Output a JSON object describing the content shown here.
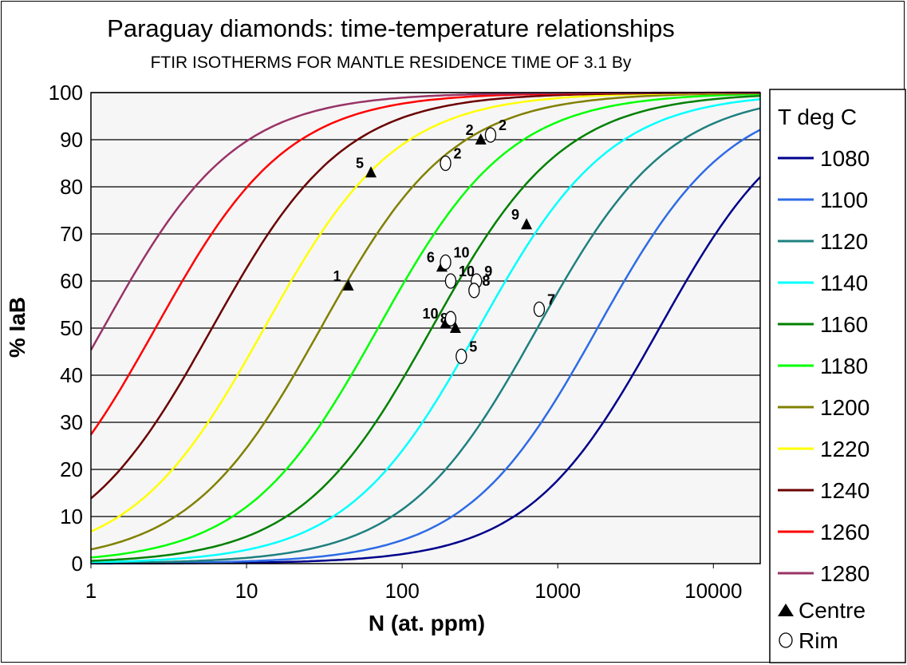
{
  "chart_data": {
    "type": "line",
    "title": "Paraguay diamonds: time-temperature relationships",
    "subtitle": "FTIR ISOTHERMS FOR MANTLE RESIDENCE TIME OF 3.1 By",
    "xlabel": "N (at. ppm)",
    "ylabel": "% IaB",
    "xscale": "log",
    "xlim": [
      1,
      20000
    ],
    "ylim": [
      0,
      100
    ],
    "xticks": [
      1,
      10,
      100,
      1000,
      10000
    ],
    "xtick_labels": [
      "1",
      "10",
      "100",
      "1000",
      "10000"
    ],
    "yticks": [
      0,
      10,
      20,
      30,
      40,
      50,
      60,
      70,
      80,
      90,
      100
    ],
    "grid": "horizontal",
    "legend_title": "T deg C",
    "legend_position": "right",
    "series": [
      {
        "name": "1080",
        "color": "#00008b",
        "x50": 4500
      },
      {
        "name": "1100",
        "color": "#2e6be6",
        "x50": 1800
      },
      {
        "name": "1120",
        "color": "#1f8080",
        "x50": 740
      },
      {
        "name": "1140",
        "color": "#00ffff",
        "x50": 310
      },
      {
        "name": "1160",
        "color": "#008000",
        "x50": 155
      },
      {
        "name": "1180",
        "color": "#00ff00",
        "x50": 70
      },
      {
        "name": "1200",
        "color": "#808000",
        "x50": 30
      },
      {
        "name": "1220",
        "color": "#ffff00",
        "x50": 13
      },
      {
        "name": "1240",
        "color": "#6b0000",
        "x50": 6
      },
      {
        "name": "1260",
        "color": "#ff0000",
        "x50": 2.6
      },
      {
        "name": "1280",
        "color": "#993366",
        "x50": 1.2
      }
    ],
    "point_sets": [
      {
        "name": "Centre",
        "marker": "triangle",
        "points": [
          {
            "label": "1",
            "x": 45,
            "y": 59
          },
          {
            "label": "5",
            "x": 63,
            "y": 83
          },
          {
            "label": "2",
            "x": 320,
            "y": 90
          },
          {
            "label": "9",
            "x": 630,
            "y": 72
          },
          {
            "label": "6",
            "x": 180,
            "y": 63
          },
          {
            "label": "10",
            "x": 190,
            "y": 51
          },
          {
            "label": "8",
            "x": 220,
            "y": 50
          }
        ]
      },
      {
        "name": "Rim",
        "marker": "circle",
        "points": [
          {
            "label": "2",
            "x": 190,
            "y": 85
          },
          {
            "label": "2",
            "x": 370,
            "y": 91
          },
          {
            "label": "10",
            "x": 190,
            "y": 64
          },
          {
            "label": "10",
            "x": 205,
            "y": 60
          },
          {
            "label": "9",
            "x": 300,
            "y": 60
          },
          {
            "label": "8",
            "x": 290,
            "y": 58
          },
          {
            "label": "7",
            "x": 760,
            "y": 54
          },
          {
            "label": "",
            "x": 205,
            "y": 52
          },
          {
            "label": "5",
            "x": 240,
            "y": 44
          }
        ]
      }
    ]
  }
}
